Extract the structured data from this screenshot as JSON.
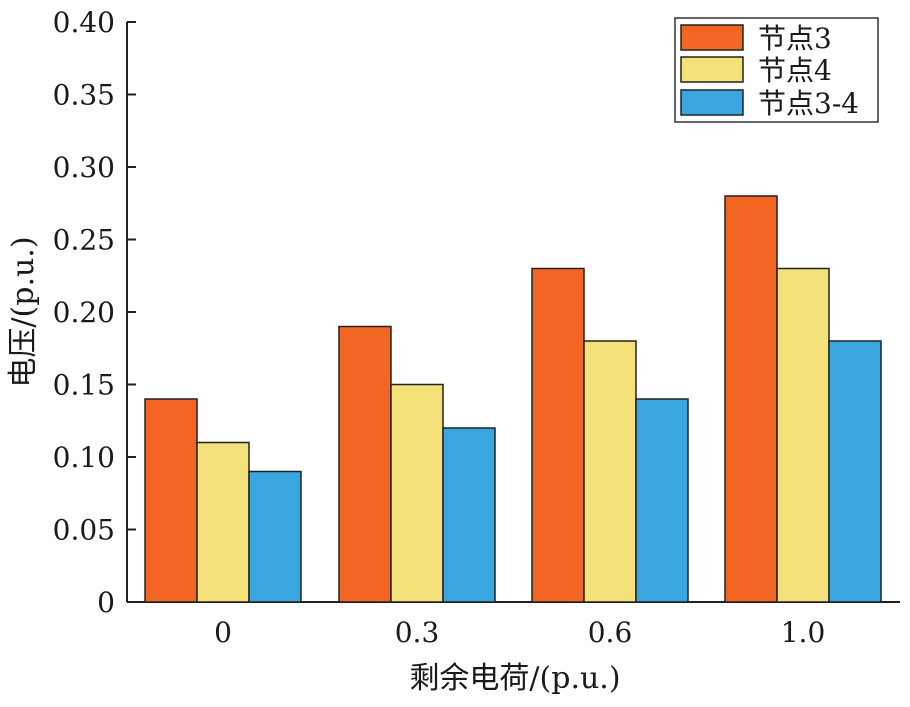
{
  "chart_data": {
    "type": "bar",
    "categories": [
      "0",
      "0.3",
      "0.6",
      "1.0"
    ],
    "series": [
      {
        "name": "节点3",
        "values": [
          0.14,
          0.19,
          0.23,
          0.28
        ],
        "color": "#f26522"
      },
      {
        "name": "节点4",
        "values": [
          0.11,
          0.15,
          0.18,
          0.23
        ],
        "color": "#f5e17a"
      },
      {
        "name": "节点3-4",
        "values": [
          0.09,
          0.12,
          0.14,
          0.18
        ],
        "color": "#3aa6df"
      }
    ],
    "xlabel": "剩余电荷/(p.u.)",
    "ylabel": "电压/(p.u.)",
    "ylim": [
      0,
      0.4
    ],
    "yticks": [
      "0",
      "0.05",
      "0.10",
      "0.15",
      "0.20",
      "0.25",
      "0.30",
      "0.35",
      "0.40"
    ],
    "ytick_values": [
      0,
      0.05,
      0.1,
      0.15,
      0.2,
      0.25,
      0.3,
      0.35,
      0.4
    ],
    "grid": false,
    "legend_position": "top-right"
  }
}
